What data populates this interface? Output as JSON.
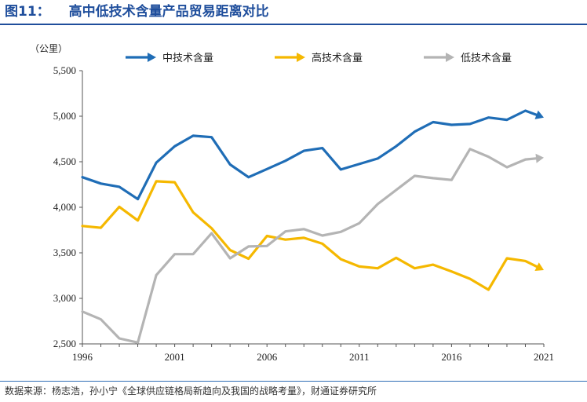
{
  "figure": {
    "number": "图11：",
    "title": "高中低技术含量产品贸易距离对比",
    "source": "数据来源：杨志浩，孙小宁《全球供应链格局新趋向及我国的战略考量》，财通证券研究所"
  },
  "colors": {
    "accent": "#1f4e9c",
    "mid": "#1f6db6",
    "high": "#f5b800",
    "low": "#b4b4b4"
  },
  "chart_data": {
    "type": "line",
    "ylabel": "（公里）",
    "xlim": [
      1996,
      2021
    ],
    "ylim": [
      2500,
      5500
    ],
    "x_ticks": [
      1996,
      2001,
      2006,
      2011,
      2016,
      2021
    ],
    "y_ticks": [
      2500,
      3000,
      3500,
      4000,
      4500,
      5000,
      5500
    ],
    "y_tick_labels": [
      "2,500",
      "3,000",
      "3,500",
      "4,000",
      "4,500",
      "5,000",
      "5,500"
    ],
    "grid": false,
    "legend": "top",
    "x": [
      1996,
      1997,
      1998,
      1999,
      2000,
      2001,
      2002,
      2003,
      2004,
      2005,
      2006,
      2007,
      2008,
      2009,
      2010,
      2011,
      2012,
      2013,
      2014,
      2015,
      2016,
      2017,
      2018,
      2019,
      2020,
      2021
    ],
    "series": [
      {
        "name": "中技术含量",
        "color": "#1f6db6",
        "values": [
          4330,
          4260,
          4225,
          4090,
          4490,
          4670,
          4785,
          4770,
          4470,
          4330,
          4420,
          4510,
          4620,
          4650,
          4415,
          4475,
          4535,
          4670,
          4830,
          4935,
          4905,
          4915,
          4985,
          4960,
          5060,
          4985
        ]
      },
      {
        "name": "高技术含量",
        "color": "#f5b800",
        "values": [
          3795,
          3775,
          4005,
          3855,
          4285,
          4275,
          3945,
          3770,
          3530,
          3435,
          3685,
          3645,
          3665,
          3600,
          3430,
          3350,
          3330,
          3445,
          3330,
          3370,
          3295,
          3215,
          3095,
          3440,
          3410,
          3310
        ]
      },
      {
        "name": "低技术含量",
        "color": "#b4b4b4",
        "values": [
          2855,
          2770,
          2560,
          2515,
          3255,
          3485,
          3485,
          3715,
          3440,
          3570,
          3575,
          3735,
          3760,
          3690,
          3730,
          3825,
          4035,
          4190,
          4345,
          4320,
          4300,
          4640,
          4555,
          4440,
          4525,
          4545
        ]
      }
    ]
  }
}
